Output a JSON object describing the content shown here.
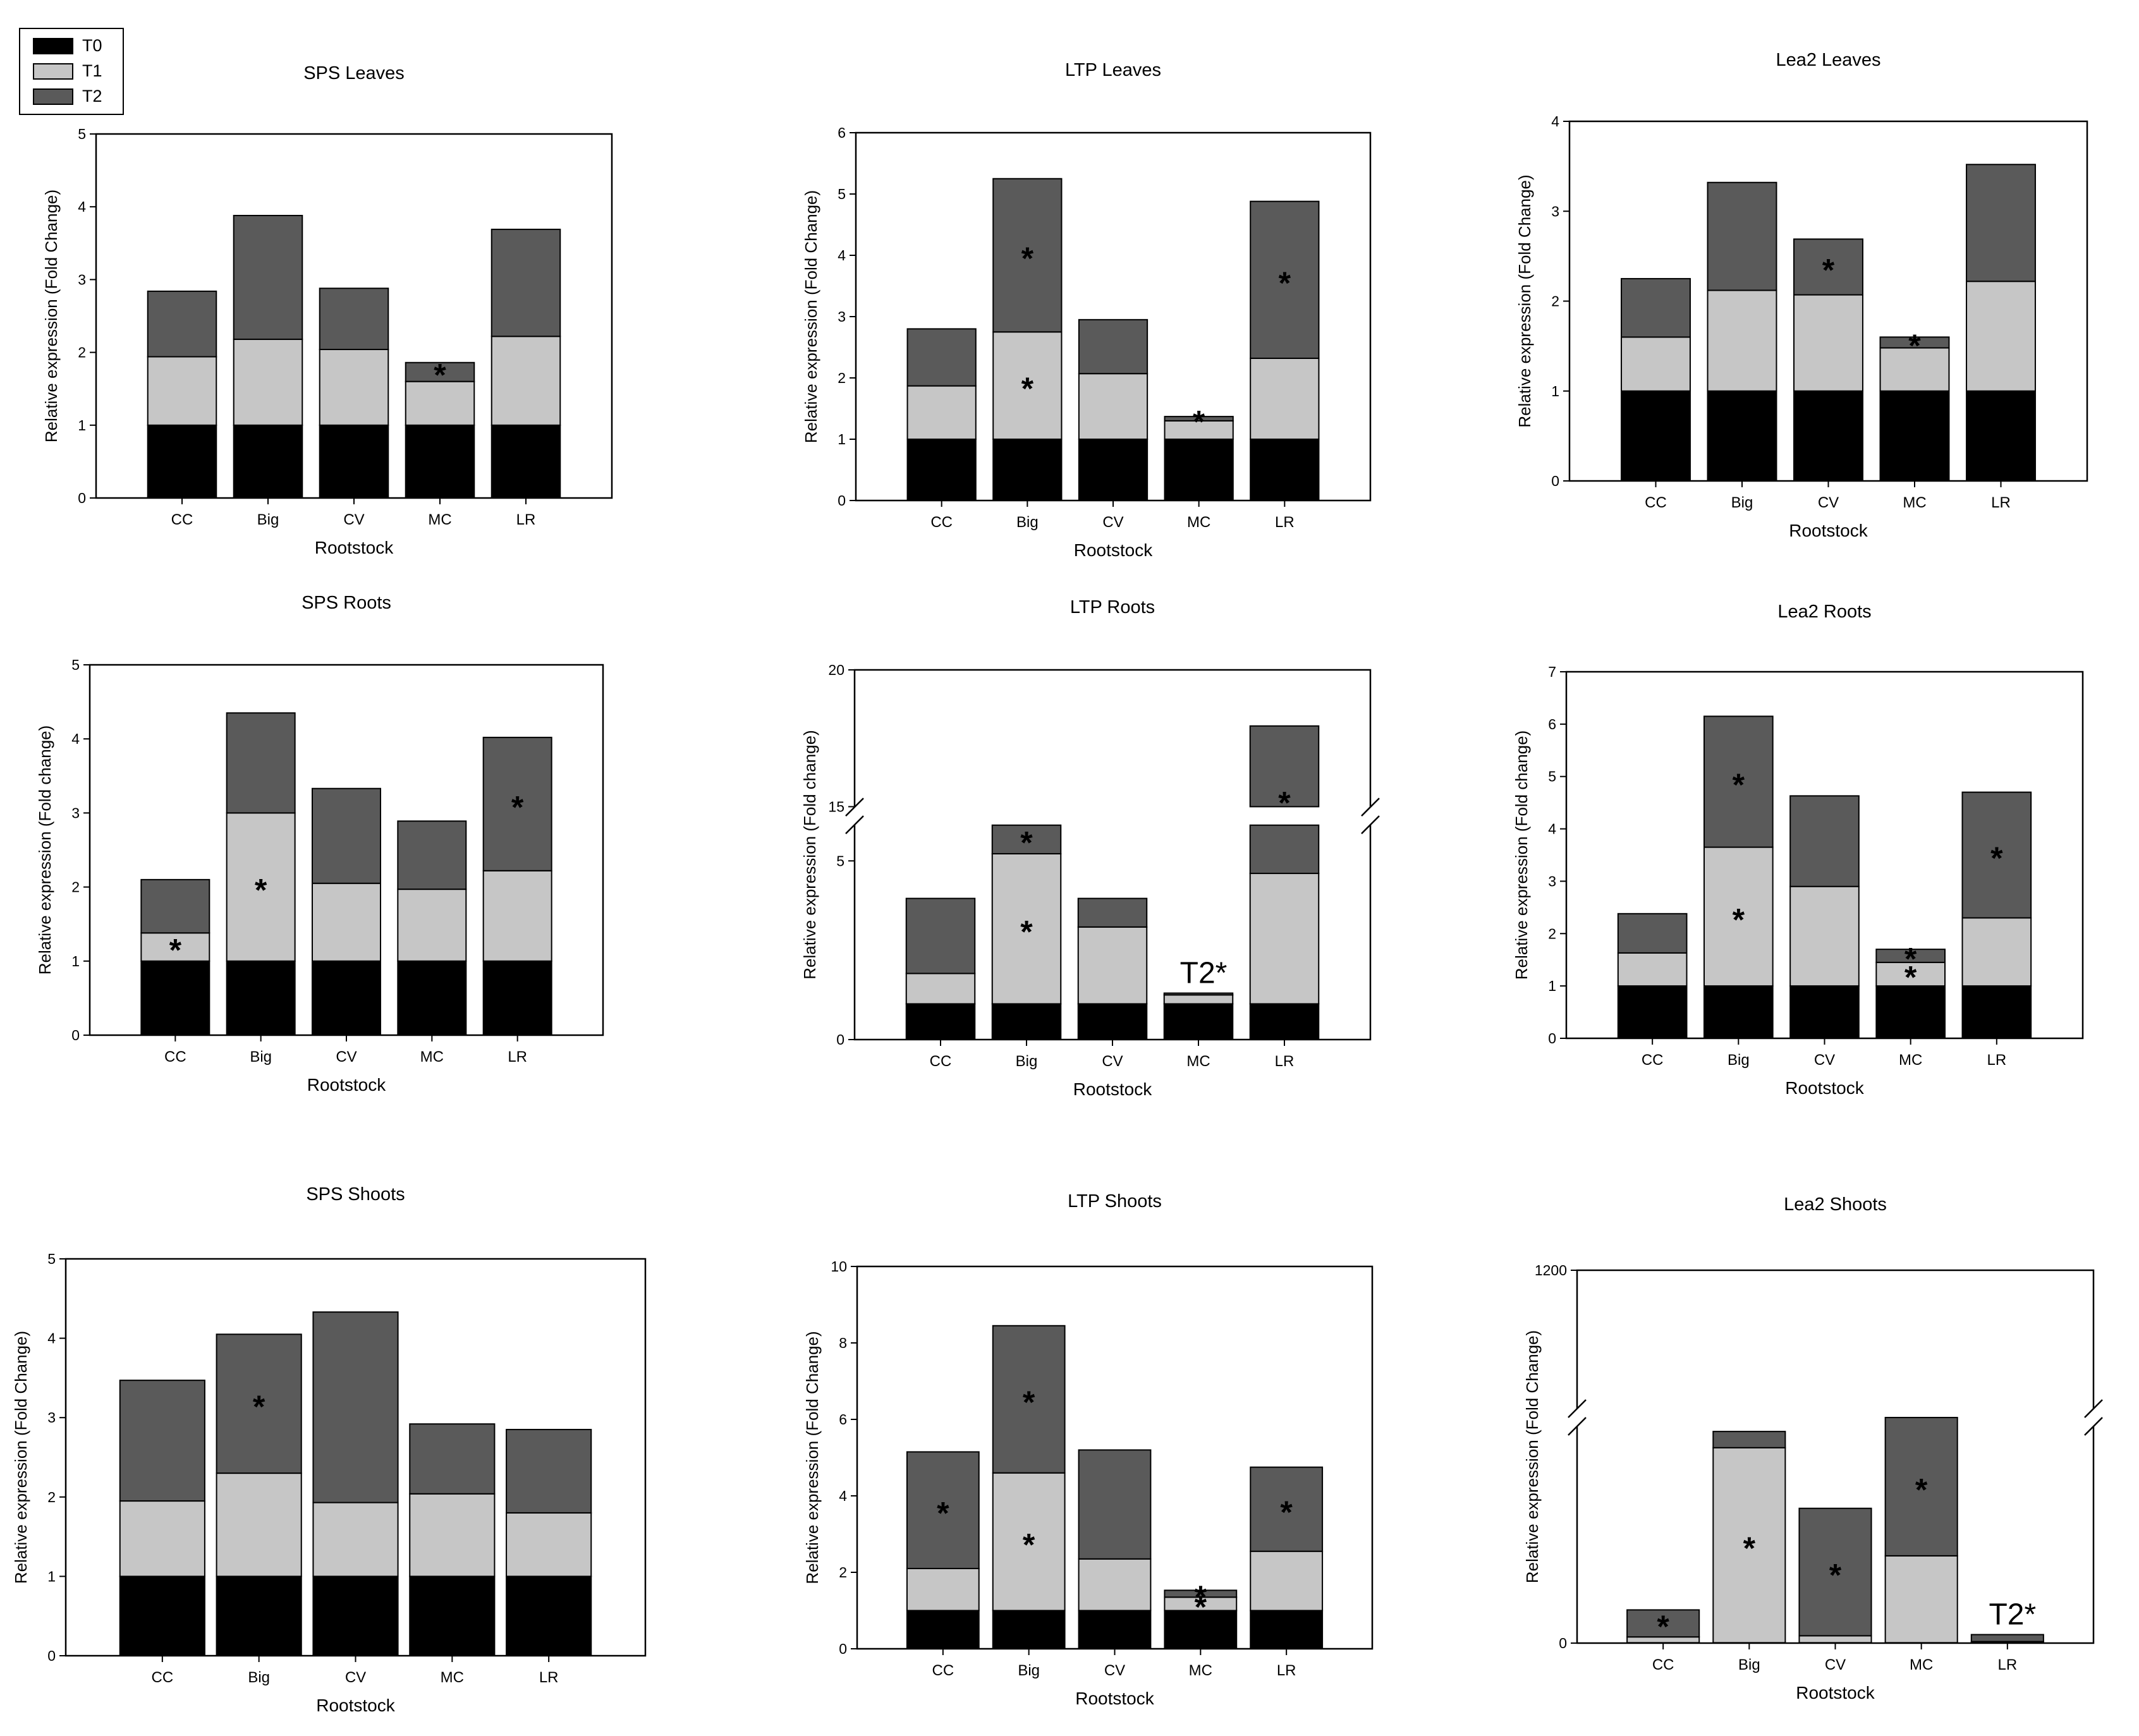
{
  "legend": {
    "items": [
      {
        "label": "T0",
        "color": "#000000"
      },
      {
        "label": "T1",
        "color": "#c6c6c6"
      },
      {
        "label": "T2",
        "color": "#5a5a5a"
      }
    ]
  },
  "chart_data": [
    {
      "type": "bar",
      "stacked": true,
      "title": "SPS Leaves",
      "categories": [
        "CC",
        "Big",
        "CV",
        "MC",
        "LR"
      ],
      "series": [
        {
          "name": "T0",
          "values": [
            1,
            1,
            1,
            1,
            1
          ]
        },
        {
          "name": "T1",
          "values": [
            0.94,
            1.18,
            1.04,
            0.6,
            1.22
          ]
        },
        {
          "name": "T2",
          "values": [
            0.9,
            1.7,
            0.84,
            0.26,
            1.47
          ]
        }
      ],
      "xlabel": "Rootstock",
      "ylabel": "Relative expression (Fold Change)",
      "ylim": [
        0,
        5
      ],
      "yticks": [
        "0",
        "1",
        "2",
        "3",
        "4",
        "5"
      ],
      "annotations": [
        {
          "category": "MC",
          "series": "T2",
          "text": "*"
        }
      ]
    },
    {
      "type": "bar",
      "stacked": true,
      "title": "LTP Leaves",
      "categories": [
        "CC",
        "Big",
        "CV",
        "MC",
        "LR"
      ],
      "series": [
        {
          "name": "T0",
          "values": [
            1,
            1,
            1,
            1,
            1
          ]
        },
        {
          "name": "T1",
          "values": [
            0.87,
            1.75,
            1.07,
            0.3,
            1.32
          ]
        },
        {
          "name": "T2",
          "values": [
            0.93,
            2.5,
            0.88,
            0.07,
            2.56
          ]
        }
      ],
      "xlabel": "Rootstock",
      "ylabel": "Relative expression (Fold Change)",
      "ylim": [
        0,
        6
      ],
      "yticks": [
        "0",
        "1",
        "2",
        "3",
        "4",
        "5",
        "6"
      ],
      "annotations": [
        {
          "category": "Big",
          "series": "T1",
          "text": "*"
        },
        {
          "category": "Big",
          "series": "T2",
          "text": "*"
        },
        {
          "category": "MC",
          "series": "T2",
          "text": "*"
        },
        {
          "category": "LR",
          "series": "T2",
          "text": "*"
        }
      ]
    },
    {
      "type": "bar",
      "stacked": true,
      "title": "Lea2 Leaves",
      "categories": [
        "CC",
        "Big",
        "CV",
        "MC",
        "LR"
      ],
      "series": [
        {
          "name": "T0",
          "values": [
            1,
            1,
            1,
            1,
            1
          ]
        },
        {
          "name": "T1",
          "values": [
            0.6,
            1.12,
            1.07,
            0.48,
            1.22
          ]
        },
        {
          "name": "T2",
          "values": [
            0.65,
            1.2,
            0.62,
            0.12,
            1.3
          ]
        }
      ],
      "xlabel": "Rootstock",
      "ylabel": "Relative expression (Fold Change)",
      "ylim": [
        0,
        4
      ],
      "yticks": [
        "0",
        "1",
        "2",
        "3",
        "4"
      ],
      "annotations": [
        {
          "category": "CV",
          "series": "T2",
          "text": "*"
        },
        {
          "category": "MC",
          "series": "T2",
          "text": "*"
        }
      ]
    },
    {
      "type": "bar",
      "stacked": true,
      "title": "SPS Roots",
      "categories": [
        "CC",
        "Big",
        "CV",
        "MC",
        "LR"
      ],
      "series": [
        {
          "name": "T0",
          "values": [
            1,
            1,
            1,
            1,
            1
          ]
        },
        {
          "name": "T1",
          "values": [
            0.38,
            2.0,
            1.05,
            0.97,
            1.22
          ]
        },
        {
          "name": "T2",
          "values": [
            0.72,
            1.35,
            1.28,
            0.92,
            1.8
          ]
        }
      ],
      "xlabel": "Rootstock",
      "ylabel": "Relative expression (Fold change)",
      "ylim": [
        0,
        5
      ],
      "yticks": [
        "0",
        "1",
        "2",
        "3",
        "4",
        "5"
      ],
      "annotations": [
        {
          "category": "CC",
          "series": "T1",
          "text": "*"
        },
        {
          "category": "Big",
          "series": "T1",
          "text": "*"
        },
        {
          "category": "LR",
          "series": "T2",
          "text": "*"
        }
      ]
    },
    {
      "type": "bar",
      "stacked": true,
      "title": "LTP Roots",
      "categories": [
        "CC",
        "Big",
        "CV",
        "MC",
        "LR"
      ],
      "series": [
        {
          "name": "T0",
          "values": [
            1,
            1,
            1,
            1,
            1
          ]
        },
        {
          "name": "T1",
          "values": [
            0.85,
            4.2,
            2.15,
            0.25,
            3.65
          ]
        },
        {
          "name": "T2",
          "values": [
            2.1,
            0.8,
            0.8,
            0.05,
            13.3
          ]
        }
      ],
      "xlabel": "Rootstock",
      "ylabel": "Relative expression (Fold change)",
      "ylim": [
        0,
        20
      ],
      "ybreak": [
        6,
        15
      ],
      "yticks": [
        "0",
        "5",
        "15",
        "20"
      ],
      "annotations": [
        {
          "category": "Big",
          "series": "T1",
          "text": "*"
        },
        {
          "category": "Big",
          "series": "T2",
          "text": "*"
        },
        {
          "category": "MC",
          "series": "T2",
          "text": "T2*"
        },
        {
          "category": "LR",
          "series": "T2",
          "text": "*"
        }
      ]
    },
    {
      "type": "bar",
      "stacked": true,
      "title": "Lea2 Roots",
      "categories": [
        "CC",
        "Big",
        "CV",
        "MC",
        "LR"
      ],
      "series": [
        {
          "name": "T0",
          "values": [
            1,
            1,
            1,
            1,
            1
          ]
        },
        {
          "name": "T1",
          "values": [
            0.63,
            2.65,
            1.9,
            0.45,
            1.3
          ]
        },
        {
          "name": "T2",
          "values": [
            0.75,
            2.5,
            1.73,
            0.25,
            2.4
          ]
        }
      ],
      "xlabel": "Rootstock",
      "ylabel": "Relative expression (Fold change)",
      "ylim": [
        0,
        7
      ],
      "yticks": [
        "0",
        "1",
        "2",
        "3",
        "4",
        "5",
        "6",
        "7"
      ],
      "annotations": [
        {
          "category": "Big",
          "series": "T1",
          "text": "*"
        },
        {
          "category": "Big",
          "series": "T2",
          "text": "*"
        },
        {
          "category": "MC",
          "series": "T1",
          "text": "*"
        },
        {
          "category": "MC",
          "series": "T2",
          "text": "*"
        },
        {
          "category": "LR",
          "series": "T2",
          "text": "*"
        }
      ]
    },
    {
      "type": "bar",
      "stacked": true,
      "title": "SPS Shoots",
      "categories": [
        "CC",
        "Big",
        "CV",
        "MC",
        "LR"
      ],
      "series": [
        {
          "name": "T0",
          "values": [
            1,
            1,
            1,
            1,
            1
          ]
        },
        {
          "name": "T1",
          "values": [
            0.95,
            1.3,
            0.93,
            1.04,
            0.8
          ]
        },
        {
          "name": "T2",
          "values": [
            1.52,
            1.75,
            2.4,
            0.88,
            1.05
          ]
        }
      ],
      "xlabel": "Rootstock",
      "ylabel": "Relative expression (Fold Change)",
      "ylim": [
        0,
        5
      ],
      "yticks": [
        "0",
        "1",
        "2",
        "3",
        "4",
        "5"
      ],
      "annotations": [
        {
          "category": "Big",
          "series": "T2",
          "text": "*"
        }
      ]
    },
    {
      "type": "bar",
      "stacked": true,
      "title": "LTP Shoots",
      "categories": [
        "CC",
        "Big",
        "CV",
        "MC",
        "LR"
      ],
      "series": [
        {
          "name": "T0",
          "values": [
            1,
            1,
            1,
            1,
            1
          ]
        },
        {
          "name": "T1",
          "values": [
            1.1,
            3.6,
            1.35,
            0.35,
            1.55
          ]
        },
        {
          "name": "T2",
          "values": [
            3.05,
            3.85,
            2.85,
            0.18,
            2.2
          ]
        }
      ],
      "xlabel": "Rootstock",
      "ylabel": "Relative expression (Fold Change)",
      "ylim": [
        0,
        10
      ],
      "yticks": [
        "0",
        "2",
        "4",
        "6",
        "8",
        "10"
      ],
      "annotations": [
        {
          "category": "CC",
          "series": "T2",
          "text": "*"
        },
        {
          "category": "Big",
          "series": "T1",
          "text": "*"
        },
        {
          "category": "Big",
          "series": "T2",
          "text": "*"
        },
        {
          "category": "MC",
          "series": "T1",
          "text": "*"
        },
        {
          "category": "MC",
          "series": "T2",
          "text": "*"
        },
        {
          "category": "LR",
          "series": "T2",
          "text": "*"
        }
      ]
    },
    {
      "type": "bar",
      "stacked": true,
      "title": "Lea2 Shoots",
      "categories": [
        "CC",
        "Big",
        "CV",
        "MC",
        "LR"
      ],
      "series": [
        {
          "name": "T0",
          "values": [
            1,
            1,
            1,
            1,
            1
          ]
        },
        {
          "name": "T1",
          "values": [
            15,
            505,
            18,
            225,
            3
          ]
        },
        {
          "name": "T2",
          "values": [
            70,
            42,
            330,
            335,
            18
          ]
        }
      ],
      "xlabel": "Rootstock",
      "ylabel": "Relative expression (Fold Change)",
      "ylim": [
        0,
        1200
      ],
      "ybreak": [
        560,
        660
      ],
      "yticks": [
        "0",
        "1200"
      ],
      "annotations": [
        {
          "category": "CC",
          "series": "T2",
          "text": "*"
        },
        {
          "category": "Big",
          "series": "T1",
          "text": "*"
        },
        {
          "category": "CV",
          "series": "T2",
          "text": "*"
        },
        {
          "category": "MC",
          "series": "T2",
          "text": "*"
        },
        {
          "category": "LR",
          "series": "T2",
          "text": "T2*"
        }
      ]
    }
  ]
}
